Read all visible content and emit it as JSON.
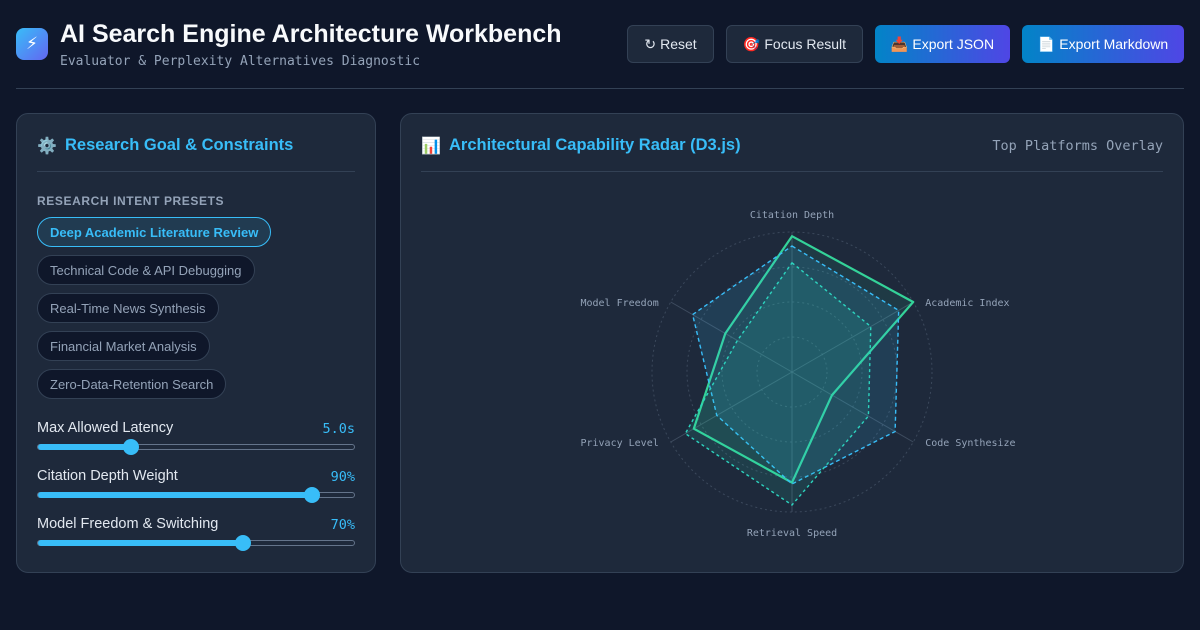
{
  "header": {
    "logo_icon": "lightning-icon",
    "title": "AI Search Engine Architecture Workbench",
    "subtitle": "Evaluator & Perplexity Alternatives Diagnostic",
    "buttons": [
      {
        "icon": "↻",
        "label": "Reset"
      },
      {
        "icon": "🎯",
        "label": "Focus Result"
      },
      {
        "icon": "📥",
        "label": "Export JSON"
      },
      {
        "icon": "📄",
        "label": "Export Markdown"
      }
    ]
  },
  "left_panel": {
    "icon": "⚙️",
    "title": "Research Goal & Constraints",
    "presets_label": "RESEARCH INTENT PRESETS",
    "presets": [
      {
        "label": "Deep Academic Literature Review",
        "active": true
      },
      {
        "label": "Technical Code & API Debugging",
        "active": false
      },
      {
        "label": "Real-Time News Synthesis",
        "active": false
      },
      {
        "label": "Financial Market Analysis",
        "active": false
      },
      {
        "label": "Zero-Data-Retention Search",
        "active": false
      }
    ],
    "sliders": [
      {
        "label": "Max Allowed Latency",
        "value": "5.0s",
        "fraction": 0.295
      },
      {
        "label": "Citation Depth Weight",
        "value": "90%",
        "fraction": 0.868
      },
      {
        "label": "Model Freedom & Switching",
        "value": "70%",
        "fraction": 0.65
      }
    ]
  },
  "right_panel": {
    "icon": "📊",
    "title": "Architectural Capability Radar (D3.js)",
    "note": "Top Platforms Overlay"
  },
  "colors": {
    "accent": "#38bdf8",
    "series_green": "#34d399",
    "series_blue": "#38bdf8",
    "series_teal": "#2dd4bf"
  },
  "chart_data": {
    "type": "radar",
    "axes": [
      "Citation Depth",
      "Academic Index",
      "Code Synthesize",
      "Retrieval Speed",
      "Privacy Level",
      "Model Freedom"
    ],
    "max": 100,
    "series": [
      {
        "style": "solid",
        "values": [
          97,
          100,
          33,
          79,
          81,
          55
        ]
      },
      {
        "style": "dashed",
        "values": [
          90,
          88,
          85,
          80,
          62,
          82
        ]
      },
      {
        "style": "dashed",
        "values": [
          78,
          65,
          63,
          95,
          88,
          45
        ]
      }
    ]
  }
}
